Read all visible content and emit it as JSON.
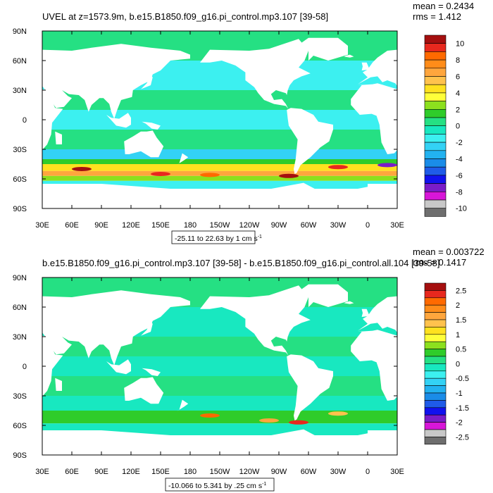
{
  "chart_data": [
    {
      "type": "heatmap",
      "title": "UVEL at z=1573.9m, b.e15.B1850.f09_g16.pi_control.mp3.107 [39-58]",
      "mean_label": "mean = 0.2434",
      "rms_label": "rms = 1.412",
      "range_label": "-25.11 to 22.63 by 1 cm s",
      "range_superscript": "-1",
      "x_ticks": [
        "30E",
        "60E",
        "90E",
        "120E",
        "150E",
        "180",
        "150W",
        "120W",
        "90W",
        "60W",
        "30W",
        "0",
        "30E"
      ],
      "y_ticks": [
        "90N",
        "60N",
        "30N",
        "0",
        "30S",
        "60S",
        "90S"
      ],
      "colorbar_labels": [
        "10",
        "8",
        "6",
        "4",
        "2",
        "0",
        "-2",
        "-4",
        "-6",
        "-8",
        "-10"
      ],
      "colorbar_colors": [
        "#a50f0f",
        "#e8281e",
        "#ff6a00",
        "#ff8c19",
        "#ffa63d",
        "#ffc24d",
        "#ffe11f",
        "#ffff3a",
        "#8ce01e",
        "#2fcc2a",
        "#25e083",
        "#18e8c0",
        "#3cf0f0",
        "#33d2f5",
        "#22b2f0",
        "#1a8ce8",
        "#1f5be8",
        "#1111ee",
        "#7a1cc8",
        "#d816d8",
        "#c8c8c8",
        "#6e6e6e"
      ],
      "bands": [
        {
          "lat": [
            60,
            90
          ],
          "v": 0.5
        },
        {
          "lat": [
            30,
            60
          ],
          "v": -1
        },
        {
          "lat": [
            10,
            30
          ],
          "v": 0.3
        },
        {
          "lat": [
            -10,
            10
          ],
          "v": -1.5
        },
        {
          "lat": [
            -30,
            -10
          ],
          "v": 0.5
        },
        {
          "lat": [
            -40,
            -30
          ],
          "v": -2
        },
        {
          "lat": [
            -45,
            -40
          ],
          "v": 1
        },
        {
          "lat": [
            -52,
            -45
          ],
          "v": 4
        },
        {
          "lat": [
            -57,
            -52
          ],
          "v": 6
        },
        {
          "lat": [
            -62,
            -57
          ],
          "v": 2
        },
        {
          "lat": [
            -70,
            -62
          ],
          "v": -1
        }
      ],
      "hotspots": [
        {
          "lon": 70,
          "lat": -50,
          "v": 10
        },
        {
          "lon": 150,
          "lat": -55,
          "v": 9
        },
        {
          "lon": 200,
          "lat": -56,
          "v": 8
        },
        {
          "lon": 280,
          "lat": -57,
          "v": 10
        },
        {
          "lon": 330,
          "lat": -48,
          "v": 9
        },
        {
          "lon": 20,
          "lat": -46,
          "v": -7
        }
      ]
    },
    {
      "type": "heatmap",
      "title": "b.e15.B1850.f09_g16.pi_control.mp3.107 [39-58] - b.e15.B1850.f09_g16.pi_control.all.104 [39-58]",
      "mean_label": "mean = 0.003722",
      "rms_label": "rms = 0.1417",
      "range_label": "-10.066 to 5.341 by .25 cm s",
      "range_superscript": "-1",
      "x_ticks": [
        "30E",
        "60E",
        "90E",
        "120E",
        "150E",
        "180",
        "150W",
        "120W",
        "90W",
        "60W",
        "30W",
        "0",
        "30E"
      ],
      "y_ticks": [
        "90N",
        "60N",
        "30N",
        "0",
        "30S",
        "60S",
        "90S"
      ],
      "colorbar_labels": [
        "2.5",
        "2",
        "1.5",
        "1",
        "0.5",
        "0",
        "-0.5",
        "-1",
        "-1.5",
        "-2",
        "-2.5"
      ],
      "colorbar_colors": [
        "#a50f0f",
        "#e8281e",
        "#ff6a00",
        "#ff8c19",
        "#ffa63d",
        "#ffc24d",
        "#ffe11f",
        "#ffff3a",
        "#8ce01e",
        "#2fcc2a",
        "#25e083",
        "#18e8c0",
        "#3cf0f0",
        "#33d2f5",
        "#22b2f0",
        "#1a8ce8",
        "#1f5be8",
        "#1111ee",
        "#7a1cc8",
        "#d816d8",
        "#c8c8c8",
        "#6e6e6e"
      ],
      "bands": [
        {
          "lat": [
            60,
            90
          ],
          "v": 0.1
        },
        {
          "lat": [
            30,
            60
          ],
          "v": -0.1
        },
        {
          "lat": [
            10,
            30
          ],
          "v": 0.2
        },
        {
          "lat": [
            -10,
            10
          ],
          "v": -0.1
        },
        {
          "lat": [
            -30,
            -10
          ],
          "v": 0.1
        },
        {
          "lat": [
            -45,
            -30
          ],
          "v": -0.2
        },
        {
          "lat": [
            -58,
            -45
          ],
          "v": 0.3
        },
        {
          "lat": [
            -70,
            -58
          ],
          "v": -0.1
        }
      ],
      "hotspots": [
        {
          "lon": 200,
          "lat": -50,
          "v": 2
        },
        {
          "lon": 260,
          "lat": -55,
          "v": 1.5
        },
        {
          "lon": 290,
          "lat": -57,
          "v": 2.2
        },
        {
          "lon": 330,
          "lat": -48,
          "v": 1.2
        }
      ]
    }
  ]
}
